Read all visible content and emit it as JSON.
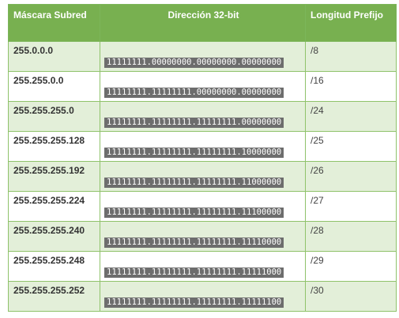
{
  "headers": {
    "mask": "Máscara Subred",
    "address": "Dirección 32-bit",
    "prefix": "Longitud Prefijo"
  },
  "rows": [
    {
      "mask": "255.0.0.0",
      "binary": "11111111.00000000.00000000.00000000",
      "prefix": "/8"
    },
    {
      "mask": "255.255.0.0",
      "binary": "11111111.11111111.00000000.00000000",
      "prefix": "/16"
    },
    {
      "mask": "255.255.255.0",
      "binary": "11111111.11111111.11111111.00000000",
      "prefix": "/24"
    },
    {
      "mask": "255.255.255.128",
      "binary": "11111111.11111111.11111111.10000000",
      "prefix": "/25"
    },
    {
      "mask": "255.255.255.192",
      "binary": "11111111.11111111.11111111.11000000",
      "prefix": "/26"
    },
    {
      "mask": "255.255.255.224",
      "binary": "11111111.11111111.11111111.11100000",
      "prefix": "/27"
    },
    {
      "mask": "255.255.255.240",
      "binary": "11111111.11111111.11111111.11110000",
      "prefix": "/28"
    },
    {
      "mask": "255.255.255.248",
      "binary": "11111111.11111111.11111111.11111000",
      "prefix": "/29"
    },
    {
      "mask": "255.255.255.252",
      "binary": "11111111.11111111.11111111.11111100",
      "prefix": "/30"
    }
  ],
  "colors": {
    "header_bg": "#78b050",
    "row_shade": "#e3efd9",
    "code_bg": "#6d6d6d"
  }
}
